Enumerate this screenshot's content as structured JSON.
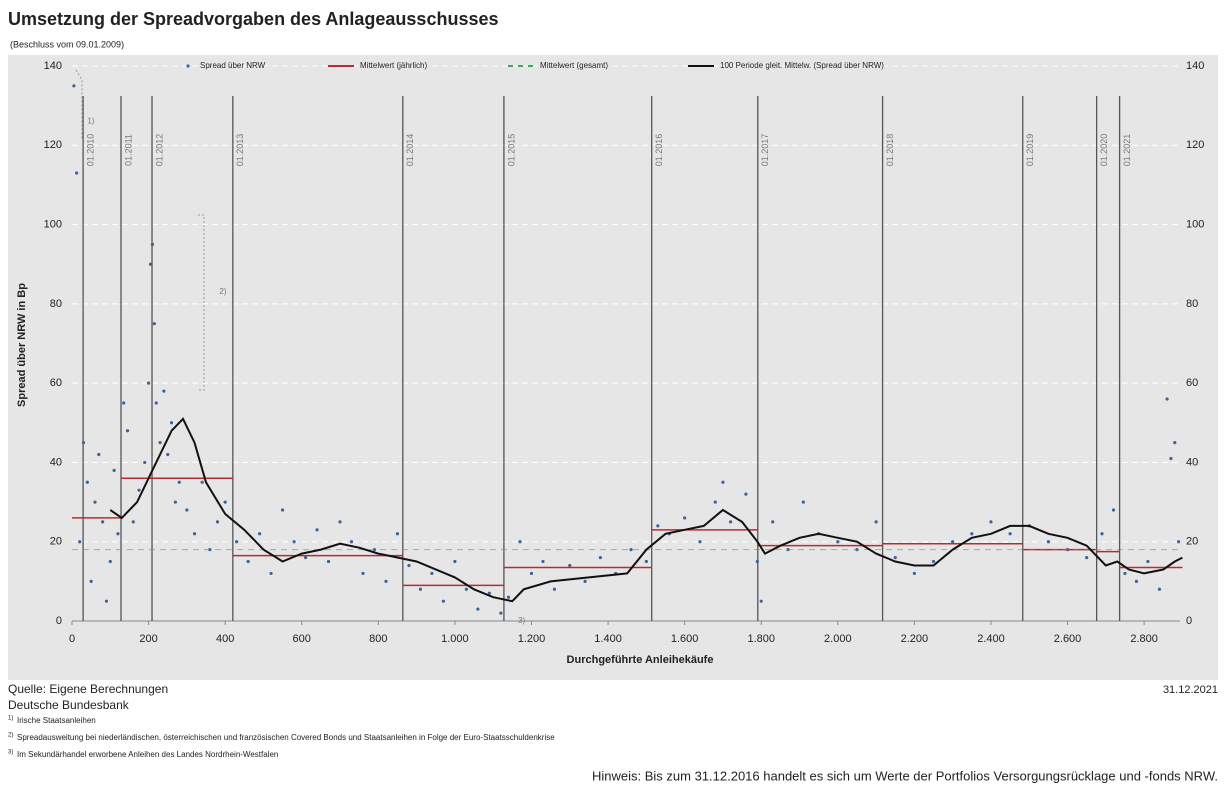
{
  "chart_data": {
    "type": "scatter",
    "title": "Umsetzung der Spreadvorgaben des Anlageausschusses",
    "subtitle": "(Beschluss vom 09.01.2009)",
    "xlabel": "Durchgeführte Anleihekäufe",
    "ylabel": "Spread über NRW in Bp",
    "xlim": [
      0,
      2900
    ],
    "ylim": [
      0,
      140
    ],
    "xticks": [
      0,
      200,
      400,
      600,
      800,
      {
        "value": 1000,
        "label": "1.000"
      },
      {
        "value": 1200,
        "label": "1.200"
      },
      {
        "value": 1400,
        "label": "1.400"
      },
      {
        "value": 1600,
        "label": "1.600"
      },
      {
        "value": 1800,
        "label": "1.800"
      },
      {
        "value": 2000,
        "label": "2.000"
      },
      {
        "value": 2200,
        "label": "2.200"
      },
      {
        "value": 2400,
        "label": "2.400"
      },
      {
        "value": 2600,
        "label": "2.600"
      },
      {
        "value": 2800,
        "label": "2.800"
      }
    ],
    "yticks": [
      0,
      20,
      40,
      60,
      80,
      100,
      120,
      140
    ],
    "y2ticks": [
      0,
      20,
      40,
      60,
      80,
      100,
      120,
      140
    ],
    "grid": true,
    "series": [
      {
        "name": "Spread über NRW",
        "type": "scatter",
        "color": "#3c6496",
        "x": [
          5,
          12,
          20,
          30,
          40,
          50,
          60,
          70,
          80,
          90,
          100,
          110,
          120,
          135,
          145,
          160,
          175,
          190,
          200,
          205,
          210,
          215,
          220,
          230,
          240,
          250,
          260,
          270,
          280,
          300,
          320,
          340,
          360,
          380,
          400,
          430,
          460,
          490,
          520,
          550,
          580,
          610,
          640,
          670,
          700,
          730,
          760,
          790,
          820,
          850,
          880,
          910,
          940,
          970,
          1000,
          1030,
          1060,
          1090,
          1120,
          1140,
          1170,
          1200,
          1230,
          1260,
          1300,
          1340,
          1380,
          1420,
          1460,
          1500,
          1530,
          1560,
          1600,
          1640,
          1680,
          1700,
          1720,
          1760,
          1790,
          1800,
          1830,
          1870,
          1910,
          1950,
          2000,
          2050,
          2100,
          2150,
          2200,
          2250,
          2300,
          2350,
          2400,
          2450,
          2500,
          2550,
          2600,
          2650,
          2690,
          2720,
          2750,
          2780,
          2810,
          2840,
          2860,
          2870,
          2880,
          2890
        ],
        "values": [
          135,
          113,
          20,
          45,
          35,
          10,
          30,
          42,
          25,
          5,
          15,
          38,
          22,
          55,
          48,
          25,
          33,
          40,
          60,
          90,
          95,
          75,
          55,
          45,
          58,
          42,
          50,
          30,
          35,
          28,
          22,
          35,
          18,
          25,
          30,
          20,
          15,
          22,
          12,
          28,
          20,
          16,
          23,
          15,
          25,
          20,
          12,
          18,
          10,
          22,
          14,
          8,
          12,
          5,
          15,
          8,
          3,
          7,
          2,
          6,
          20,
          12,
          15,
          8,
          14,
          10,
          16,
          12,
          18,
          15,
          24,
          22,
          26,
          20,
          30,
          35,
          25,
          32,
          15,
          5,
          25,
          18,
          30,
          22,
          20,
          18,
          25,
          16,
          12,
          15,
          20,
          22,
          25,
          22,
          24,
          20,
          18,
          16,
          22,
          28,
          12,
          10,
          15,
          8,
          56,
          41,
          45,
          20
        ]
      },
      {
        "name": "Mittelwert (jährlich)",
        "type": "segments",
        "color": "#c0282d",
        "x_start": [
          0,
          128,
          420,
          864,
          1128,
          1514,
          1791,
          2117,
          2483,
          2676,
          2736
        ],
        "x_end": [
          128,
          420,
          864,
          1128,
          1514,
          1791,
          2117,
          2483,
          2676,
          2736,
          2900
        ],
        "values": [
          26,
          36,
          16.5,
          9,
          13.5,
          23,
          19,
          19.5,
          18,
          17.5,
          13.5
        ]
      },
      {
        "name": "Mittelwert (gesamt)",
        "type": "hline",
        "color": "#3aa860",
        "values": [
          18
        ]
      },
      {
        "name": "100 Periode gleit. Mittelw. (Spread über NRW)",
        "type": "line",
        "color": "#111111",
        "x": [
          100,
          130,
          170,
          220,
          260,
          290,
          320,
          350,
          400,
          450,
          500,
          550,
          600,
          650,
          700,
          750,
          800,
          900,
          1000,
          1050,
          1100,
          1150,
          1180,
          1250,
          1350,
          1450,
          1500,
          1550,
          1600,
          1650,
          1700,
          1750,
          1790,
          1810,
          1850,
          1900,
          1950,
          2000,
          2050,
          2100,
          2150,
          2200,
          2250,
          2300,
          2350,
          2400,
          2450,
          2500,
          2550,
          2600,
          2650,
          2700,
          2730,
          2760,
          2800,
          2850,
          2880,
          2900
        ],
        "values": [
          28,
          26,
          30,
          40,
          48,
          51,
          45,
          35,
          27,
          23,
          18,
          15,
          17,
          18,
          19.5,
          18.5,
          17,
          15,
          11,
          8,
          6,
          5,
          8,
          10,
          11,
          12,
          18,
          22,
          23,
          24,
          28,
          25,
          20,
          17,
          19,
          21,
          22,
          21,
          20,
          17,
          15,
          14,
          14,
          18,
          21,
          22,
          24,
          24,
          22,
          21,
          19,
          14,
          15,
          13,
          12,
          13,
          15,
          16
        ]
      }
    ],
    "year_lines": {
      "x": [
        29,
        128,
        209,
        420,
        864,
        1128,
        1514,
        1791,
        2117,
        2483,
        2676,
        2736
      ],
      "labels": [
        "01.2010",
        "01.2011",
        "01.2012",
        "01.2013",
        "01.2014",
        "01.2015",
        "01.2016",
        "01.2017",
        "01.2018",
        "01.2019",
        "01.2020",
        "01.2021"
      ]
    },
    "annotations": [
      {
        "text": "1)",
        "x": 40,
        "y": 126
      },
      {
        "text": "2)",
        "x": 385,
        "y": 83
      },
      {
        "text": "3)",
        "x": 1165,
        "y": 0
      }
    ]
  },
  "footer": {
    "source": "Quelle: Eigene Berechnungen",
    "institution": "Deutsche Bundesbank",
    "date": "31.12.2021",
    "footnotes": [
      {
        "mark": "1)",
        "text": "Irische Staatsanleihen"
      },
      {
        "mark": "2)",
        "text": "Spreadausweitung bei niederländischen, österreichischen und französischen Covered Bonds und Staatsanleihen in Folge der Euro-Staatsschuldenkrise"
      },
      {
        "mark": "3)",
        "text": "Im Sekundärhandel erworbene Anleihen des Landes Nordrhein-Westfalen"
      }
    ],
    "note": "Hinweis: Bis zum 31.12.2016 handelt es sich um Werte der Portfolios Versorgungsrücklage und -fonds NRW."
  }
}
